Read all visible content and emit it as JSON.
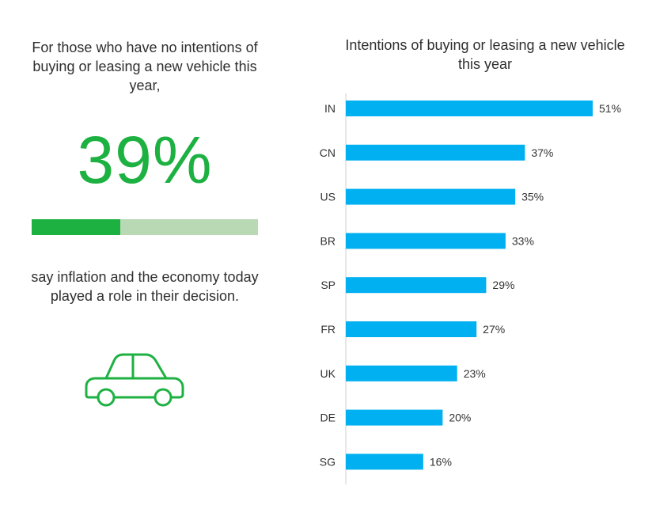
{
  "left_panel": {
    "intro_text": "For those who have no intentions of buying or leasing a new vehicle this year,",
    "highlight_value": "39%",
    "highlight_fraction": 0.39,
    "caption_text": "say inflation and the economy today played a role in their decision.",
    "icon": "car-icon",
    "colors": {
      "accent": "#1db142",
      "track": "#b8d9b4"
    }
  },
  "chart_data": {
    "type": "bar",
    "orientation": "horizontal",
    "title": "Intentions of buying or leasing a new vehicle this year",
    "categories": [
      "IN",
      "CN",
      "US",
      "BR",
      "SP",
      "FR",
      "UK",
      "DE",
      "SG"
    ],
    "values": [
      51,
      37,
      35,
      33,
      29,
      27,
      23,
      20,
      16
    ],
    "value_labels": [
      "51%",
      "37%",
      "35%",
      "33%",
      "29%",
      "27%",
      "23%",
      "20%",
      "16%"
    ],
    "unit": "%",
    "xlim": [
      0,
      51
    ],
    "grid": false,
    "legend": "none",
    "bar_color": "#00b0f0"
  }
}
